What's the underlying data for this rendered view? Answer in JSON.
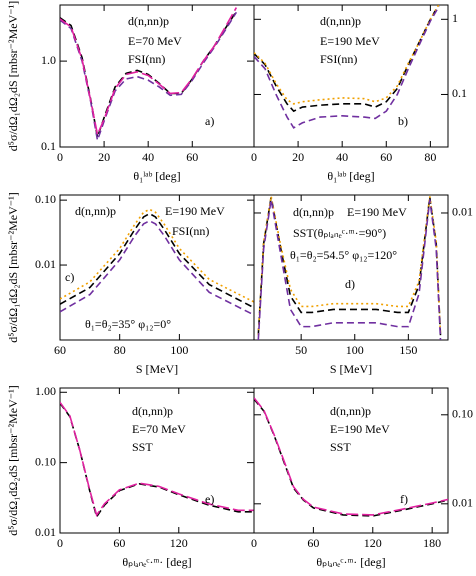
{
  "chart_data": [
    {
      "type": "line",
      "log_y": true,
      "xlim": [
        0,
        88
      ],
      "ylim": [
        0.1,
        4.5
      ],
      "xticks": [
        0,
        20,
        40,
        60
      ],
      "yticks": [
        0.1,
        {
          "value": 1,
          "label": "1.0"
        }
      ],
      "x_label": "θ₁ˡᵃᵇ [deg]",
      "y_label": "d⁵σ/dΩ₁dΩ₂dS [mbsr⁻²MeV⁻¹]",
      "annotations": [
        "d(n,nn)p",
        "E=70 MeV",
        "FSI(nn)",
        "a)"
      ],
      "x": [
        0,
        5,
        10,
        14,
        17,
        20,
        25,
        30,
        35,
        40,
        45,
        50,
        55,
        60,
        65,
        70,
        75,
        80
      ],
      "series": [
        {
          "color": "#000000",
          "linestyle": "dashed",
          "values": [
            3.2,
            2.6,
            1.1,
            0.35,
            0.13,
            0.22,
            0.5,
            0.72,
            0.78,
            0.7,
            0.55,
            0.42,
            0.42,
            0.62,
            1.0,
            1.5,
            2.4,
            3.8
          ]
        },
        {
          "color": "#7030a0",
          "linestyle": "dashed",
          "values": [
            3.0,
            2.4,
            1.0,
            0.33,
            0.12,
            0.2,
            0.45,
            0.62,
            0.66,
            0.6,
            0.5,
            0.4,
            0.41,
            0.6,
            0.95,
            1.45,
            2.3,
            3.7
          ]
        },
        {
          "color": "#e0209f",
          "linestyle": "longdash",
          "values": [
            3.1,
            2.5,
            1.05,
            0.34,
            0.14,
            0.21,
            0.48,
            0.7,
            0.75,
            0.68,
            0.54,
            0.42,
            0.43,
            0.63,
            1.0,
            1.5,
            2.5,
            4.2
          ]
        }
      ]
    },
    {
      "type": "line",
      "log_y": true,
      "xlim": [
        0,
        88
      ],
      "ylim": [
        0.02,
        1.55
      ],
      "xticks": [
        0,
        20,
        40,
        60,
        80
      ],
      "yticks": [
        0.1,
        1
      ],
      "x_label": "θ₁ˡᵃᵇ [deg]",
      "annotations": [
        "d(n,nn)p",
        "E=190 MeV",
        "FSI(nn)",
        "b)"
      ],
      "x": [
        0,
        5,
        10,
        15,
        18,
        22,
        30,
        40,
        50,
        55,
        60,
        65,
        70,
        75,
        80,
        84
      ],
      "series": [
        {
          "color": "#000000",
          "linestyle": "dashed",
          "values": [
            0.35,
            0.25,
            0.13,
            0.075,
            0.06,
            0.068,
            0.072,
            0.075,
            0.075,
            0.068,
            0.08,
            0.12,
            0.25,
            0.5,
            1.0,
            1.6
          ]
        },
        {
          "color": "#f0a000",
          "linestyle": "dotted",
          "values": [
            0.36,
            0.26,
            0.14,
            0.085,
            0.075,
            0.08,
            0.085,
            0.09,
            0.088,
            0.08,
            0.09,
            0.13,
            0.26,
            0.5,
            1.0,
            1.6
          ]
        },
        {
          "color": "#7030a0",
          "linestyle": "dashed",
          "values": [
            0.32,
            0.22,
            0.1,
            0.05,
            0.036,
            0.042,
            0.05,
            0.052,
            0.05,
            0.048,
            0.06,
            0.1,
            0.22,
            0.46,
            0.95,
            1.5
          ]
        }
      ]
    },
    {
      "type": "line",
      "log_y": true,
      "xlim": [
        60,
        125
      ],
      "ylim": [
        0.0007,
        0.12
      ],
      "xticks": [
        60,
        80,
        100
      ],
      "yticks": [
        0.01,
        {
          "value": 0.1,
          "label": "0.10"
        }
      ],
      "x_label": "S [MeV]",
      "y_label": "d⁵σ/dΩ₁dΩ₂dS [mbsr⁻²MeV⁻¹]",
      "annotations": [
        "d(n,nn)p",
        "E=190 MeV",
        "FSI(nn)",
        "c)",
        "θ₁=θ₂=35° φ₁₂=0°"
      ],
      "x": [
        60,
        70,
        80,
        85,
        88,
        90,
        92,
        95,
        100,
        110,
        125
      ],
      "series": [
        {
          "color": "#000000",
          "linestyle": "dashed",
          "values": [
            0.0025,
            0.0045,
            0.015,
            0.035,
            0.055,
            0.062,
            0.055,
            0.035,
            0.015,
            0.005,
            0.0022
          ]
        },
        {
          "color": "#f0a000",
          "linestyle": "dotted",
          "values": [
            0.003,
            0.0055,
            0.018,
            0.042,
            0.065,
            0.072,
            0.065,
            0.042,
            0.018,
            0.006,
            0.0027
          ]
        },
        {
          "color": "#7030a0",
          "linestyle": "dashed",
          "values": [
            0.0019,
            0.0035,
            0.012,
            0.028,
            0.043,
            0.048,
            0.043,
            0.028,
            0.012,
            0.0038,
            0.0017
          ]
        }
      ]
    },
    {
      "type": "line",
      "log_y": true,
      "xlim": [
        6,
        187
      ],
      "ylim": [
        0.0012,
        0.0135
      ],
      "xticks": [
        50,
        100,
        150
      ],
      "yticks": [
        0.01
      ],
      "x_label": "S [MeV]",
      "annotations": [
        "d(n,nn)p",
        "E=190 MeV",
        "SST(θₚₗₐₙₑᶜ·ᵐ·=90°)",
        "θ₁=θ₂=54.5° φ₁₂=120°",
        "d)"
      ],
      "x": [
        10,
        15,
        22,
        30,
        40,
        50,
        60,
        80,
        100,
        120,
        140,
        150,
        160,
        170,
        176,
        180
      ],
      "series": [
        {
          "color": "#000000",
          "linestyle": "dashed",
          "values": [
            0.0013,
            0.006,
            0.013,
            0.006,
            0.0025,
            0.0019,
            0.0019,
            0.002,
            0.002,
            0.002,
            0.0019,
            0.0019,
            0.003,
            0.013,
            0.006,
            0.0013
          ]
        },
        {
          "color": "#f0a000",
          "linestyle": "dotted",
          "values": [
            0.0013,
            0.0062,
            0.0132,
            0.0063,
            0.0028,
            0.0021,
            0.0021,
            0.0022,
            0.0022,
            0.0022,
            0.0021,
            0.0021,
            0.0032,
            0.0132,
            0.0062,
            0.0013
          ]
        },
        {
          "color": "#7030a0",
          "linestyle": "dashed",
          "values": [
            0.0012,
            0.0055,
            0.0125,
            0.0055,
            0.002,
            0.0015,
            0.0015,
            0.0016,
            0.0016,
            0.0016,
            0.0015,
            0.0015,
            0.0026,
            0.0125,
            0.0055,
            0.0012
          ]
        }
      ]
    },
    {
      "type": "line",
      "log_y": true,
      "xlim": [
        0,
        196
      ],
      "ylim": [
        0.01,
        1.15
      ],
      "xticks": [
        0,
        60,
        120
      ],
      "yticks": [
        0.01,
        {
          "value": 0.1,
          "label": "0.10"
        },
        {
          "value": 1,
          "label": "1.00"
        }
      ],
      "x_label": "θₚₗₐₙₑᶜ·ᵐ· [deg]",
      "y_label": "d⁵σ/dΩ₁dΩ₂dS [mbsr⁻²MeV⁻¹]",
      "annotations": [
        "d(n,nn)p",
        "E=70 MeV",
        "SST",
        "e)"
      ],
      "x": [
        0,
        10,
        20,
        30,
        37,
        45,
        60,
        80,
        100,
        120,
        150,
        180,
        196
      ],
      "series": [
        {
          "color": "#000000",
          "linestyle": "dashed",
          "values": [
            0.7,
            0.45,
            0.15,
            0.04,
            0.017,
            0.025,
            0.04,
            0.05,
            0.045,
            0.035,
            0.025,
            0.02,
            0.02
          ]
        },
        {
          "color": "#e0209f",
          "linestyle": "longdash",
          "values": [
            0.72,
            0.46,
            0.15,
            0.041,
            0.018,
            0.026,
            0.041,
            0.051,
            0.046,
            0.036,
            0.026,
            0.021,
            0.021
          ]
        }
      ]
    },
    {
      "type": "line",
      "log_y": true,
      "xlim": [
        0,
        196
      ],
      "ylim": [
        0.0047,
        0.2
      ],
      "xticks": [
        0,
        60,
        120,
        180
      ],
      "yticks": [
        0.01,
        {
          "value": 0.1,
          "label": "0.10"
        }
      ],
      "x_label": "θₚₗₐₙₑᶜ·ᵐ· [deg]",
      "annotations": [
        "d(n,nn)p",
        "E=190 MeV",
        "SST",
        "f)"
      ],
      "x": [
        0,
        10,
        20,
        30,
        40,
        50,
        60,
        90,
        120,
        150,
        180,
        196
      ],
      "series": [
        {
          "color": "#000000",
          "linestyle": "dashed",
          "values": [
            0.15,
            0.11,
            0.06,
            0.03,
            0.015,
            0.011,
            0.009,
            0.0075,
            0.0073,
            0.0085,
            0.01,
            0.011
          ]
        },
        {
          "color": "#e0209f",
          "linestyle": "longdash",
          "values": [
            0.155,
            0.112,
            0.061,
            0.031,
            0.0155,
            0.0112,
            0.0092,
            0.0077,
            0.0075,
            0.0087,
            0.0102,
            0.0112
          ]
        }
      ]
    }
  ]
}
